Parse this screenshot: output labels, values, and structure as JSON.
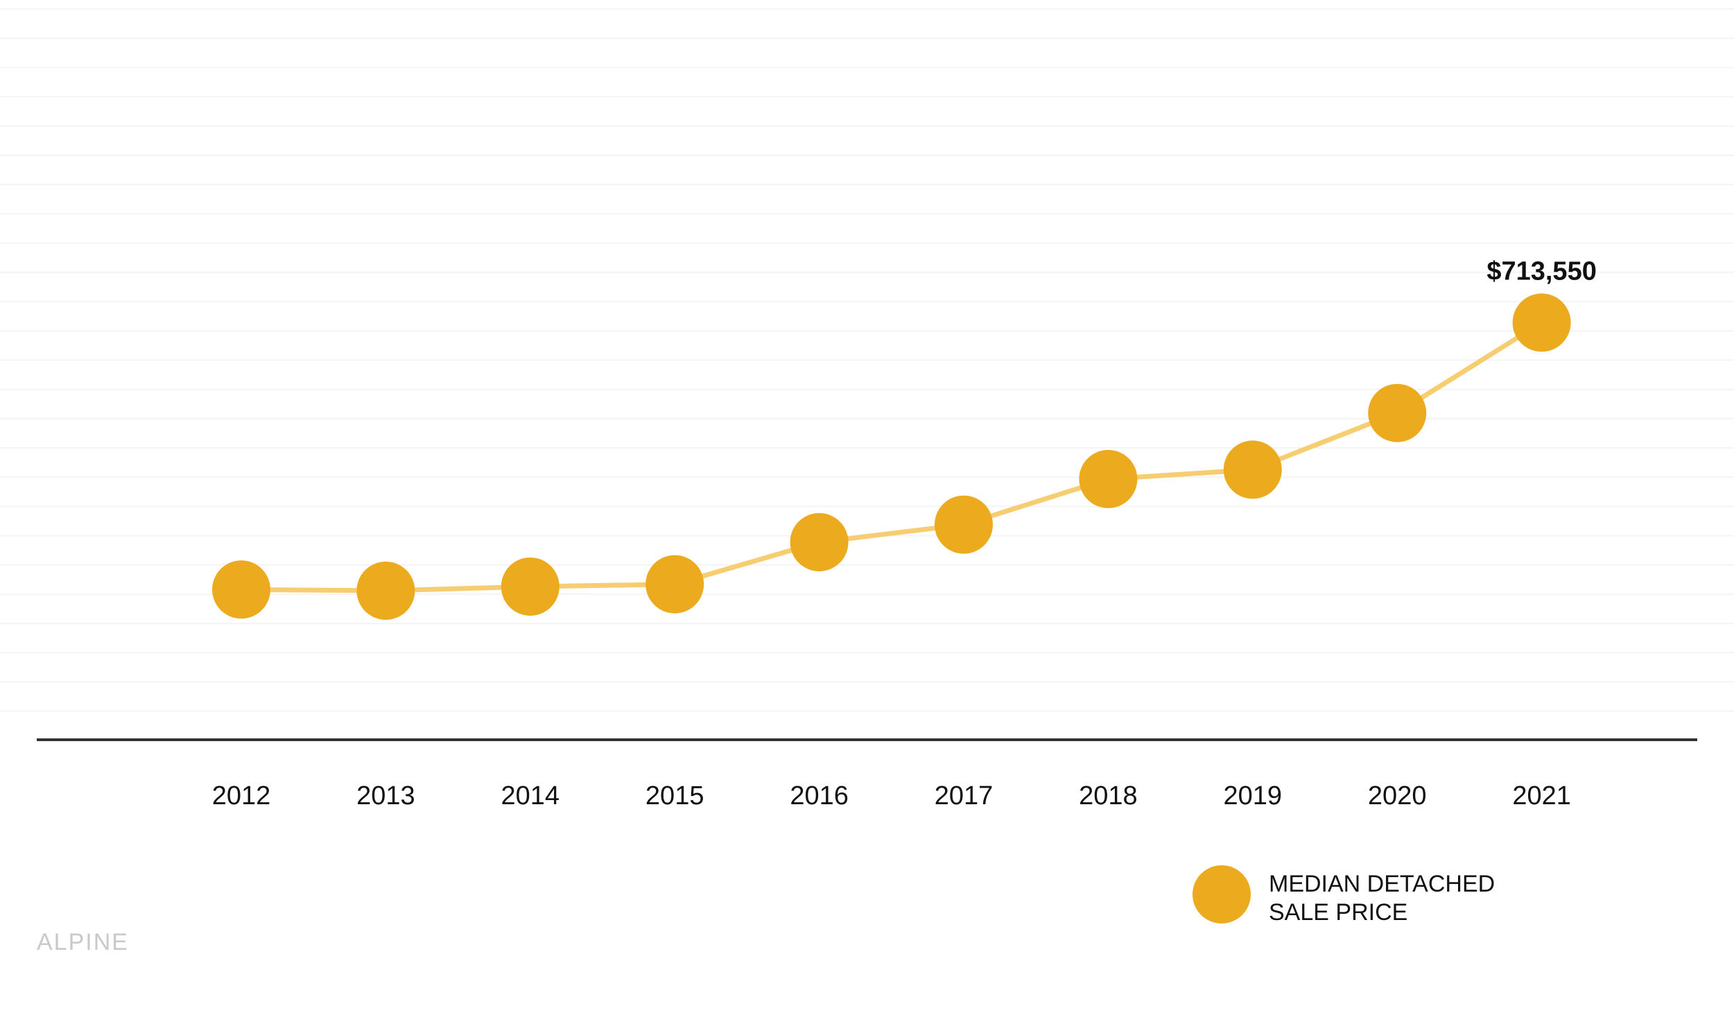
{
  "chart_data": {
    "type": "line",
    "categories": [
      "2012",
      "2013",
      "2014",
      "2015",
      "2016",
      "2017",
      "2018",
      "2019",
      "2020",
      "2021"
    ],
    "series": [
      {
        "name": "MEDIAN DETACHED SALE PRICE",
        "values": [
          257000,
          255000,
          262000,
          266000,
          338000,
          368000,
          446000,
          462000,
          559000,
          713550
        ],
        "color": "#ECAB1F",
        "line_color": "#F7CD72"
      }
    ],
    "ylim": [
      0,
      1250000
    ],
    "grid": true,
    "annotations": [
      {
        "category": "2021",
        "label": "$713,550"
      }
    ],
    "legend": {
      "position": "bottom-right",
      "lines": [
        "MEDIAN DETACHED",
        "SALE PRICE"
      ]
    },
    "colors": {
      "marker": "#ECAB1F",
      "line": "#F7CD72",
      "gridline": "#F4F4F4",
      "axis": "#333333",
      "text": "#111111",
      "watermark": "#C9C9C9"
    }
  },
  "watermark": "ALPINE"
}
